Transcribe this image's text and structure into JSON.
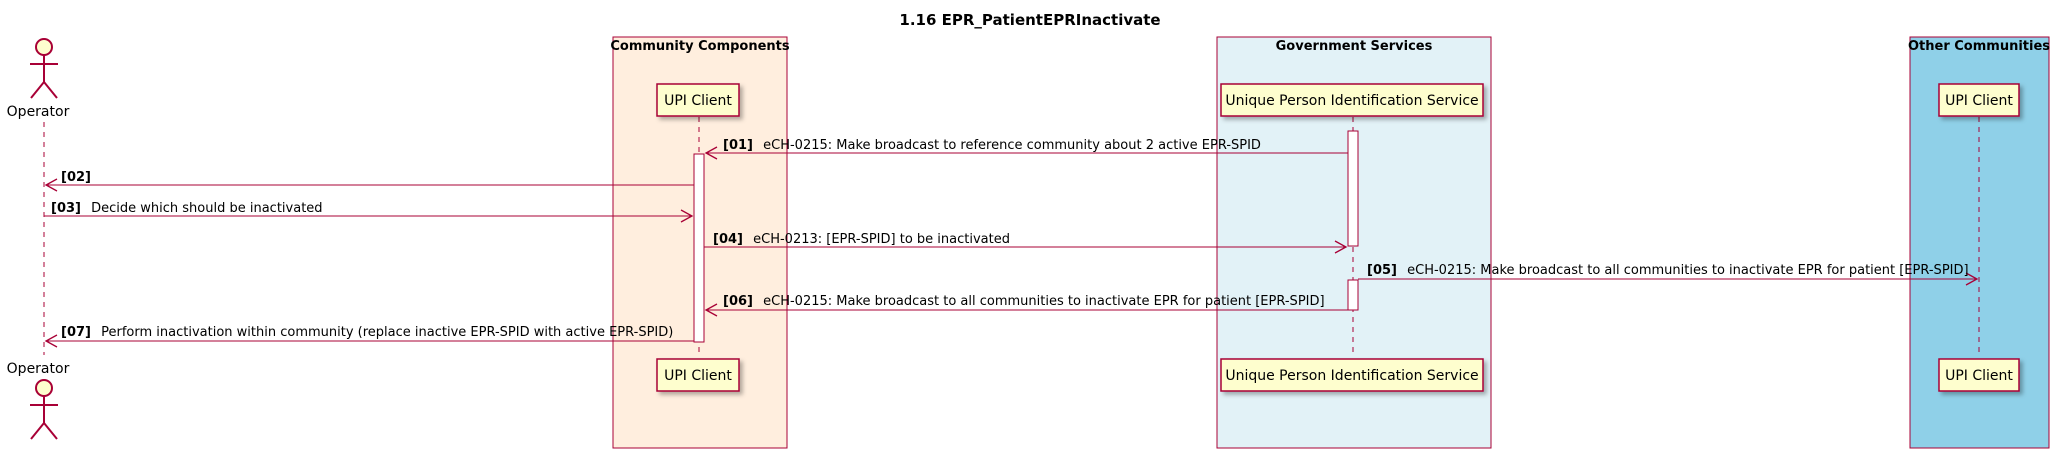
{
  "title": "1.16 EPR_PatientEPRInactivate",
  "colors": {
    "line": "#A80036",
    "participant_fill": "#FEFECE",
    "community_fill": "#FFEEDE",
    "government_fill": "#E2F2F7",
    "other_fill": "#8FD0E8"
  },
  "boxes": [
    {
      "id": "community",
      "label": "Community Components"
    },
    {
      "id": "government",
      "label": "Government Services"
    },
    {
      "id": "other",
      "label": "Other Communities"
    }
  ],
  "participants": [
    {
      "id": "operator",
      "label": "Operator",
      "kind": "actor",
      "icon": "actor-icon"
    },
    {
      "id": "upi_client",
      "label": "UPI Client",
      "kind": "participant"
    },
    {
      "id": "upis",
      "label": "Unique Person Identification Service",
      "kind": "participant"
    },
    {
      "id": "other_upi_client",
      "label": "UPI Client",
      "kind": "participant"
    }
  ],
  "messages": [
    {
      "num": "[01]",
      "text": "eCH-0215: Make broadcast to reference community about 2 active EPR-SPID",
      "from": "upis",
      "to": "upi_client"
    },
    {
      "num": "[02]",
      "text": "",
      "from": "upi_client",
      "to": "operator"
    },
    {
      "num": "[03]",
      "text": "Decide which should be inactivated",
      "from": "operator",
      "to": "upi_client"
    },
    {
      "num": "[04]",
      "text": "eCH-0213: [EPR-SPID] to be inactivated",
      "from": "upi_client",
      "to": "upis"
    },
    {
      "num": "[05]",
      "text": "eCH-0215: Make broadcast to all communities to inactivate EPR for patient [EPR-SPID]",
      "from": "upis",
      "to": "other_upi_client"
    },
    {
      "num": "[06]",
      "text": "eCH-0215: Make broadcast to all communities to inactivate EPR for patient [EPR-SPID]",
      "from": "upis",
      "to": "upi_client"
    },
    {
      "num": "[07]",
      "text": "Perform inactivation within community (replace inactive EPR-SPID with active EPR-SPID)",
      "from": "upi_client",
      "to": "operator"
    }
  ]
}
